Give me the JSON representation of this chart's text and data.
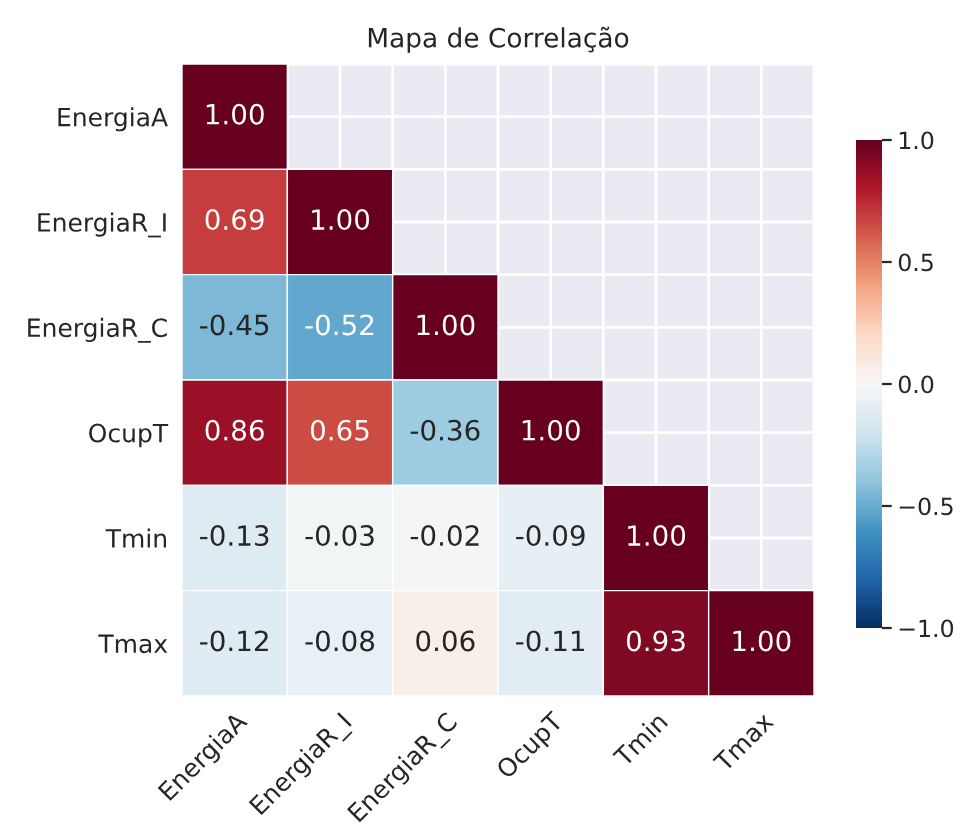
{
  "chart_data": {
    "type": "heatmap",
    "title": "Mapa de Correlação",
    "categories": [
      "EnergiaA",
      "EnergiaR_I",
      "EnergiaR_C",
      "OcupT",
      "Tmin",
      "Tmax"
    ],
    "y_categories": [
      "EnergiaA",
      "EnergiaR_I",
      "EnergiaR_C",
      "OcupT",
      "Tmin",
      "Tmax"
    ],
    "cells": [
      [
        1.0,
        null,
        null,
        null,
        null,
        null
      ],
      [
        0.69,
        1.0,
        null,
        null,
        null,
        null
      ],
      [
        -0.45,
        -0.52,
        1.0,
        null,
        null,
        null
      ],
      [
        0.86,
        0.65,
        -0.36,
        1.0,
        null,
        null
      ],
      [
        -0.13,
        -0.03,
        -0.02,
        -0.09,
        1.0,
        null
      ],
      [
        -0.12,
        -0.08,
        0.06,
        -0.11,
        0.93,
        1.0
      ]
    ],
    "cell_labels": [
      [
        "1.00",
        null,
        null,
        null,
        null,
        null
      ],
      [
        "0.69",
        "1.00",
        null,
        null,
        null,
        null
      ],
      [
        "-0.45",
        "-0.52",
        "1.00",
        null,
        null,
        null
      ],
      [
        "0.86",
        "0.65",
        "-0.36",
        "1.00",
        null,
        null
      ],
      [
        "-0.13",
        "-0.03",
        "-0.02",
        "-0.09",
        "1.00",
        null
      ],
      [
        "-0.12",
        "-0.08",
        "0.06",
        "-0.11",
        "0.93",
        "1.00"
      ]
    ],
    "clim": [
      -1,
      1
    ],
    "cticks": [
      {
        "value": -1,
        "label": "−1.0"
      },
      {
        "value": -0.5,
        "label": "−0.5"
      },
      {
        "value": 0,
        "label": "0.0"
      },
      {
        "value": 0.5,
        "label": "0.5"
      },
      {
        "value": 1,
        "label": "1.0"
      }
    ],
    "grid": true
  }
}
